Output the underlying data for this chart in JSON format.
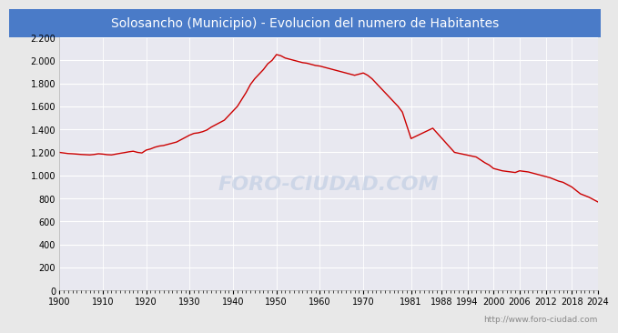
{
  "title": "Solosancho (Municipio) - Evolucion del numero de Habitantes",
  "title_bg_color": "#4a7bc8",
  "title_text_color": "#ffffff",
  "line_color": "#cc0000",
  "outer_bg_color": "#e8e8e8",
  "plot_bg_color": "#e8e8f0",
  "grid_color": "#ffffff",
  "footer_text": "http://www.foro-ciudad.com",
  "footer_color": "#888888",
  "watermark": "FORO-CIUDAD.COM",
  "xlim": [
    1900,
    2024
  ],
  "ylim": [
    0,
    2200
  ],
  "yticks": [
    0,
    200,
    400,
    600,
    800,
    1000,
    1200,
    1400,
    1600,
    1800,
    2000,
    2200
  ],
  "xtick_labels": [
    "1900",
    "1910",
    "1920",
    "1930",
    "1940",
    "1950",
    "1960",
    "1970",
    "1981",
    "1988",
    "1994",
    "2000",
    "2006",
    "2012",
    "2018",
    "2024"
  ],
  "xtick_positions": [
    1900,
    1910,
    1920,
    1930,
    1940,
    1950,
    1960,
    1970,
    1981,
    1988,
    1994,
    2000,
    2006,
    2012,
    2018,
    2024
  ],
  "years": [
    1900,
    1901,
    1902,
    1903,
    1904,
    1905,
    1906,
    1907,
    1908,
    1909,
    1910,
    1911,
    1912,
    1913,
    1914,
    1915,
    1916,
    1917,
    1918,
    1919,
    1920,
    1921,
    1922,
    1923,
    1924,
    1925,
    1926,
    1927,
    1928,
    1929,
    1930,
    1931,
    1932,
    1933,
    1934,
    1935,
    1936,
    1937,
    1938,
    1939,
    1940,
    1941,
    1942,
    1943,
    1944,
    1945,
    1946,
    1947,
    1948,
    1949,
    1950,
    1951,
    1952,
    1953,
    1954,
    1955,
    1956,
    1957,
    1958,
    1959,
    1960,
    1961,
    1962,
    1963,
    1964,
    1965,
    1966,
    1967,
    1968,
    1969,
    1970,
    1971,
    1972,
    1973,
    1974,
    1975,
    1976,
    1977,
    1978,
    1979,
    1981,
    1986,
    1991,
    1996,
    1998,
    1999,
    2000,
    2001,
    2002,
    2003,
    2004,
    2005,
    2006,
    2007,
    2008,
    2009,
    2010,
    2011,
    2012,
    2013,
    2014,
    2015,
    2016,
    2017,
    2018,
    2019,
    2020,
    2021,
    2022,
    2023,
    2024
  ],
  "population": [
    1200,
    1195,
    1190,
    1188,
    1185,
    1182,
    1180,
    1178,
    1182,
    1188,
    1185,
    1180,
    1178,
    1185,
    1192,
    1198,
    1205,
    1210,
    1200,
    1195,
    1220,
    1230,
    1245,
    1255,
    1260,
    1270,
    1280,
    1290,
    1310,
    1330,
    1350,
    1365,
    1370,
    1380,
    1395,
    1420,
    1440,
    1460,
    1480,
    1520,
    1560,
    1600,
    1660,
    1720,
    1790,
    1840,
    1880,
    1920,
    1970,
    2000,
    2050,
    2040,
    2020,
    2010,
    2000,
    1990,
    1980,
    1975,
    1965,
    1955,
    1950,
    1940,
    1930,
    1920,
    1910,
    1900,
    1890,
    1880,
    1870,
    1880,
    1890,
    1870,
    1840,
    1800,
    1760,
    1720,
    1680,
    1640,
    1600,
    1550,
    1320,
    1410,
    1200,
    1160,
    1110,
    1090,
    1060,
    1050,
    1040,
    1035,
    1030,
    1025,
    1040,
    1035,
    1030,
    1020,
    1010,
    1000,
    990,
    980,
    965,
    950,
    940,
    920,
    900,
    870,
    840,
    825,
    810,
    790,
    770
  ]
}
